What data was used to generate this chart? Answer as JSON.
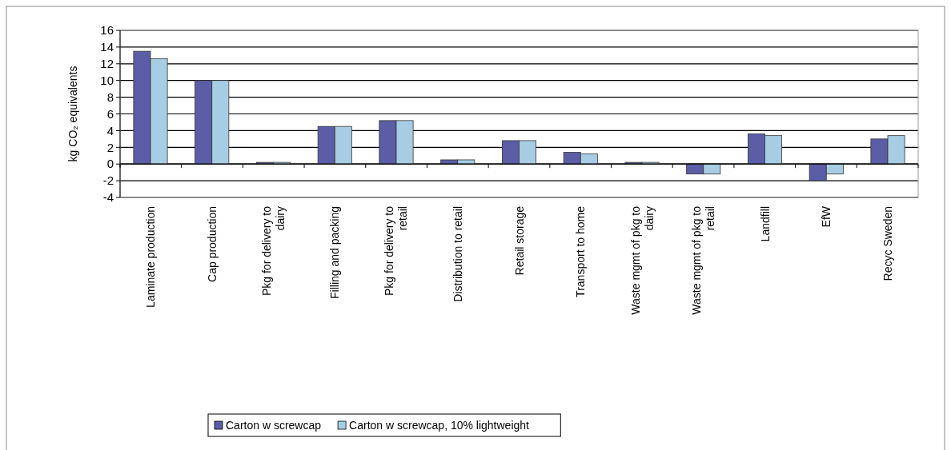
{
  "chart_data": {
    "type": "bar",
    "ylabel": "kg CO₂ equivalents",
    "categories": [
      "Laminate production",
      "Cap production",
      "Pkg for delivery to dairy",
      "Filling and packing",
      "Pkg for delivery to retail",
      "Distribution to retail",
      "Retail storage",
      "Transport to home",
      "Waste mgmt of  pkg to dairy",
      "Waste mgmt of  pkg to retail",
      "Landfill",
      "EfW",
      "Recyc Sweden"
    ],
    "series": [
      {
        "name": "Carton w screwcap",
        "color": "#5b5ea6",
        "values": [
          13.5,
          10,
          0.2,
          4.5,
          5.2,
          0.5,
          2.8,
          1.4,
          0.2,
          -1.2,
          3.6,
          -2,
          3
        ]
      },
      {
        "name": "Carton w screwcap, 10% lightweight",
        "color": "#a6cde3",
        "values": [
          12.6,
          10,
          0.2,
          4.5,
          5.2,
          0.5,
          2.8,
          1.2,
          0.2,
          -1.2,
          3.4,
          -1.2,
          3.4
        ]
      }
    ],
    "ylim": [
      -4,
      16
    ],
    "yticks": [
      -4,
      -2,
      0,
      2,
      4,
      6,
      8,
      10,
      12,
      14,
      16
    ],
    "grid": "y",
    "legend": "bottom"
  }
}
